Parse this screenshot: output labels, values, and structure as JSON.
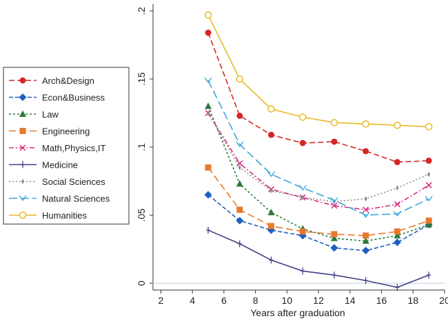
{
  "chart_data": {
    "type": "line",
    "title": "",
    "xlabel": "Years after graduation",
    "ylabel": "",
    "xlim": [
      1.5,
      20
    ],
    "ylim": [
      -0.005,
      0.205
    ],
    "xticks": [
      "2",
      "4",
      "6",
      "8",
      "10",
      "12",
      "14",
      "16",
      "18",
      "20"
    ],
    "yticks": [
      "0",
      ".05",
      ".1",
      ".15",
      ".2"
    ],
    "grid": false,
    "legend_position": "left",
    "series": [
      {
        "name": "Arch&Design",
        "color": "#d62728",
        "marker": "circle",
        "dash": "8,4",
        "x": [
          5,
          7,
          9,
          11,
          13,
          15,
          17,
          19
        ],
        "y": [
          0.184,
          0.123,
          0.109,
          0.103,
          0.104,
          0.097,
          0.089,
          0.09
        ]
      },
      {
        "name": "Econ&Business",
        "color": "#1f5fbf",
        "marker": "diamond",
        "dash": "6,3",
        "x": [
          5,
          7,
          9,
          11,
          13,
          15,
          17,
          19
        ],
        "y": [
          0.065,
          0.046,
          0.039,
          0.035,
          0.026,
          0.024,
          0.03,
          0.043
        ]
      },
      {
        "name": "Law",
        "color": "#2a7a3a",
        "marker": "triangle",
        "dash": "3,3",
        "x": [
          5,
          7,
          9,
          11,
          13,
          15,
          17,
          19
        ],
        "y": [
          0.13,
          0.073,
          0.052,
          0.04,
          0.033,
          0.031,
          0.035,
          0.043
        ]
      },
      {
        "name": "Engineering",
        "color": "#e8792b",
        "marker": "square",
        "dash": "10,5",
        "x": [
          5,
          7,
          9,
          11,
          13,
          15,
          17,
          19
        ],
        "y": [
          0.085,
          0.054,
          0.042,
          0.038,
          0.036,
          0.035,
          0.038,
          0.046
        ]
      },
      {
        "name": "Math,Physics,IT",
        "color": "#d6297b",
        "marker": "x",
        "dash": "7,3,2,3",
        "x": [
          5,
          7,
          9,
          11,
          13,
          15,
          17,
          19
        ],
        "y": [
          0.125,
          0.088,
          0.069,
          0.063,
          0.057,
          0.054,
          0.058,
          0.072
        ]
      },
      {
        "name": "Medicine",
        "color": "#3f3f86",
        "marker": "plus",
        "dash": "",
        "x": [
          5,
          7,
          9,
          11,
          13,
          15,
          17,
          19
        ],
        "y": [
          0.039,
          0.029,
          0.017,
          0.009,
          0.006,
          0.002,
          -0.003,
          0.006
        ]
      },
      {
        "name": "Social Sciences",
        "color": "#8a8a8a",
        "marker": "diamond-small",
        "dash": "2,3",
        "x": [
          5,
          7,
          9,
          11,
          13,
          15,
          17,
          19
        ],
        "y": [
          0.125,
          0.085,
          0.068,
          0.063,
          0.06,
          0.062,
          0.07,
          0.08
        ]
      },
      {
        "name": "Natural Sciences",
        "color": "#3aa6d9",
        "marker": "v",
        "dash": "12,5",
        "x": [
          5,
          7,
          9,
          11,
          13,
          15,
          17,
          19
        ],
        "y": [
          0.149,
          0.102,
          0.08,
          0.07,
          0.061,
          0.05,
          0.051,
          0.062
        ]
      },
      {
        "name": "Humanities",
        "color": "#e8b923",
        "marker": "circle-open",
        "dash": "",
        "x": [
          5,
          7,
          9,
          11,
          13,
          15,
          17,
          19
        ],
        "y": [
          0.197,
          0.15,
          0.128,
          0.122,
          0.118,
          0.117,
          0.116,
          0.115
        ]
      }
    ]
  }
}
